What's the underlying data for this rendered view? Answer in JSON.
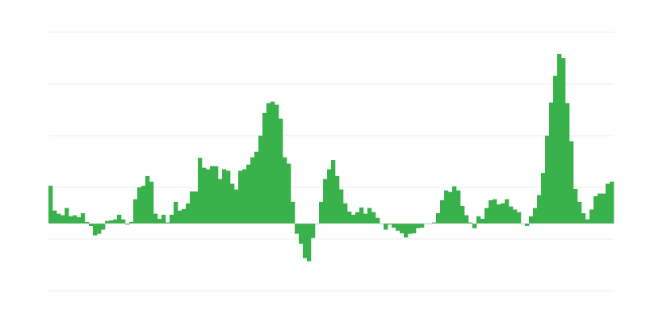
{
  "chart_data": {
    "type": "bar",
    "title": "",
    "xlabel": "",
    "ylabel": "",
    "ylim": [
      -1.3,
      3.7
    ],
    "grid": true,
    "gridlines": [
      3.7,
      2.7,
      1.7,
      0.7,
      -0.3,
      -1.3
    ],
    "bar_color": "#39b24c",
    "grid_color": "#ececec",
    "values": [
      0.73,
      0.25,
      0.19,
      0.16,
      0.3,
      0.14,
      0.16,
      0.12,
      0.2,
      0.03,
      -0.05,
      -0.23,
      -0.2,
      -0.12,
      0.05,
      0.06,
      0.08,
      0.17,
      0.08,
      -0.02,
      0.03,
      0.47,
      0.7,
      0.73,
      0.92,
      0.81,
      0.19,
      0.09,
      0.17,
      0.02,
      0.17,
      0.42,
      0.25,
      0.28,
      0.39,
      0.62,
      0.62,
      1.27,
      1.08,
      1.05,
      1.11,
      1.11,
      0.86,
      1.05,
      1.02,
      0.77,
      0.66,
      1.02,
      1.05,
      1.14,
      1.28,
      1.39,
      1.7,
      2.14,
      2.33,
      2.36,
      2.3,
      2.03,
      1.28,
      1.16,
      0.42,
      -0.2,
      -0.39,
      -0.67,
      -0.73,
      -0.28,
      0,
      0.42,
      0.86,
      1.05,
      1.23,
      0.92,
      0.66,
      0.39,
      0.23,
      0.17,
      0.22,
      0.31,
      0.19,
      0.3,
      0.22,
      0.11,
      0,
      -0.12,
      -0.02,
      -0.08,
      -0.14,
      -0.19,
      -0.27,
      -0.2,
      -0.19,
      -0.09,
      -0.08,
      0,
      0,
      0.02,
      0.2,
      0.45,
      0.64,
      0.61,
      0.72,
      0.64,
      0.34,
      0.16,
      0.02,
      -0.09,
      0.14,
      0.09,
      0.3,
      0.45,
      0.47,
      0.37,
      0.39,
      0.47,
      0.33,
      0.27,
      0.22,
      0,
      -0.05,
      0.14,
      0.3,
      0.55,
      0.98,
      1.7,
      2.34,
      2.86,
      3.28,
      3.2,
      2.33,
      1.59,
      0.67,
      0.42,
      0.2,
      0.08,
      0.27,
      0.53,
      0.58,
      0.58,
      0.77,
      0.81
    ]
  }
}
